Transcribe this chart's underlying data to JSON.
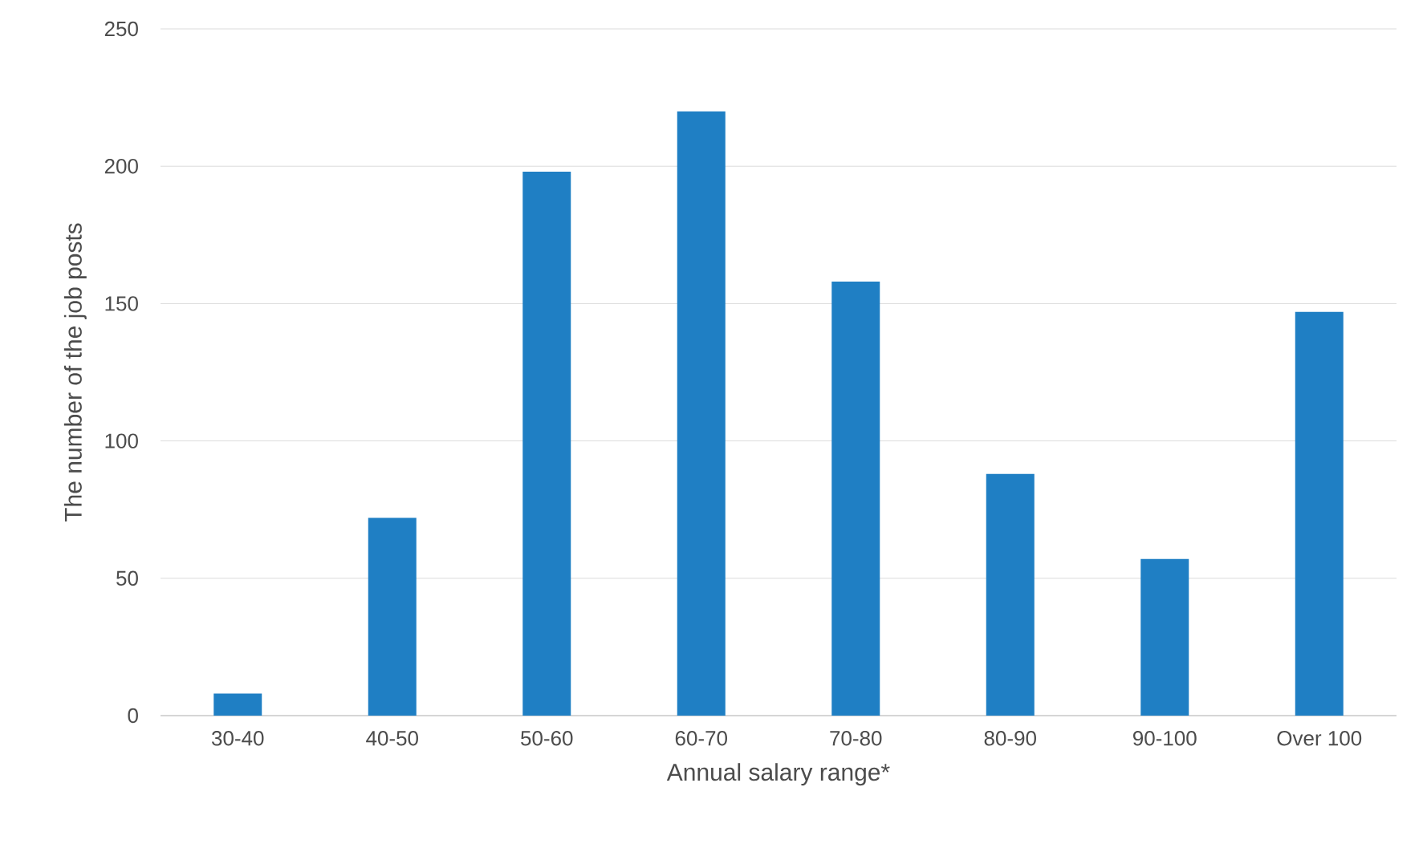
{
  "chart_data": {
    "type": "bar",
    "xlabel": "Annual salary range*",
    "ylabel": "The number of the job posts",
    "categories": [
      "30-40",
      "40-50",
      "50-60",
      "60-70",
      "70-80",
      "80-90",
      "90-100",
      "Over 100"
    ],
    "values": [
      8,
      72,
      198,
      220,
      158,
      88,
      57,
      147
    ],
    "color": "#1f7fc4",
    "ylim": [
      0,
      250
    ],
    "yticks": [
      0,
      50,
      100,
      150,
      200,
      250
    ],
    "grid": "y"
  }
}
